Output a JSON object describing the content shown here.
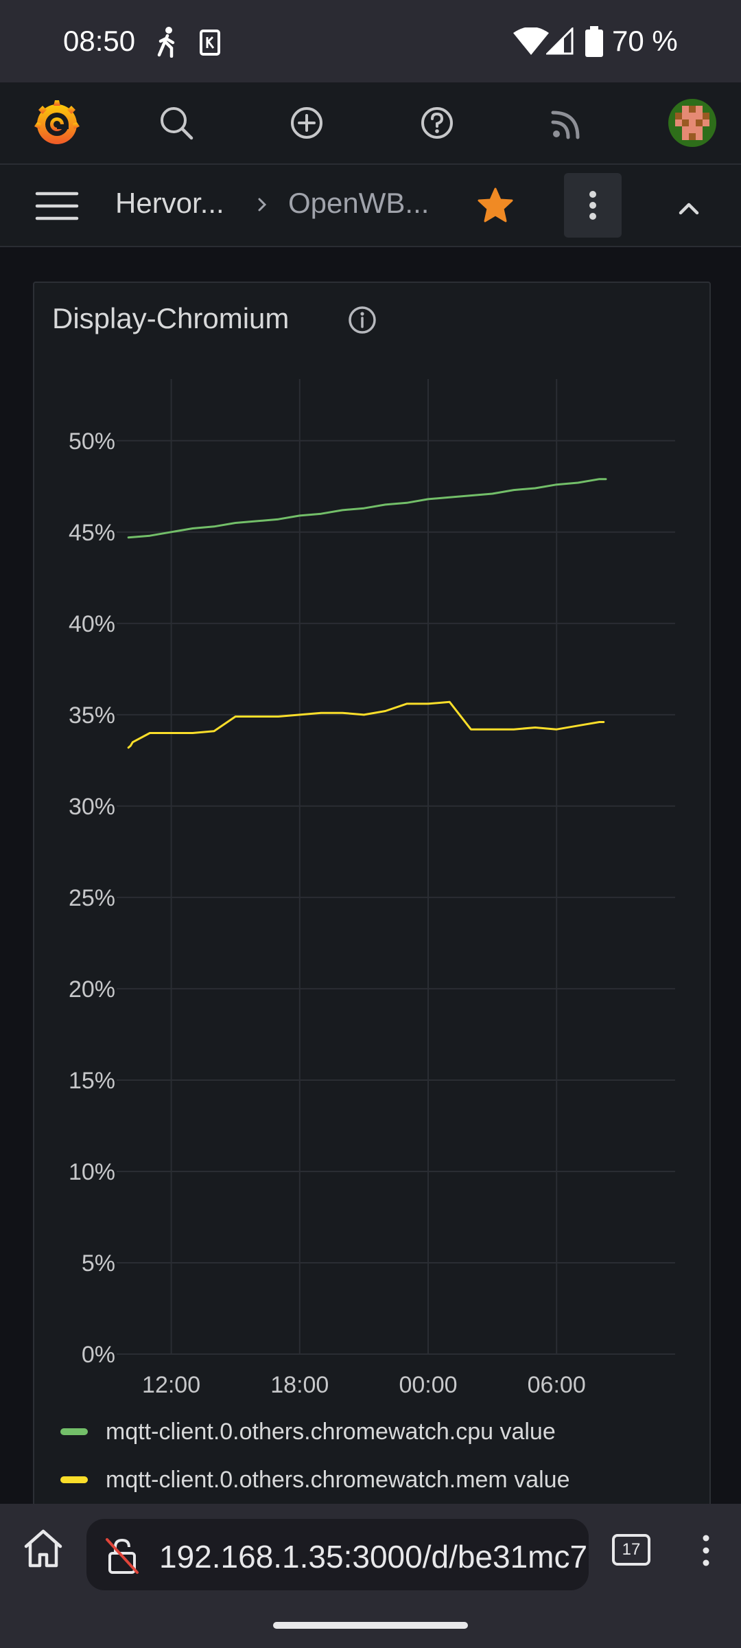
{
  "status_bar": {
    "time": "08:50",
    "battery": "70 %"
  },
  "breadcrumb": {
    "item_1": "Hervor...",
    "item_2": "OpenWB..."
  },
  "panel": {
    "title": "Display-Chromium"
  },
  "chart_data": {
    "type": "line",
    "title": "Display-Chromium",
    "xlabel": "",
    "ylabel": "",
    "x_tick_labels": [
      "12:00",
      "18:00",
      "00:00",
      "06:00"
    ],
    "y_tick_labels": [
      "0%",
      "5%",
      "10%",
      "15%",
      "20%",
      "25%",
      "30%",
      "35%",
      "40%",
      "45%",
      "50%"
    ],
    "ylim": [
      0,
      53
    ],
    "x_hours_range": [
      9,
      34
    ],
    "grid": true,
    "legend_position": "bottom",
    "series": [
      {
        "name": "mqtt-client.0.others.chromewatch.cpu value",
        "color": "#73bf69",
        "x_hours": [
          10,
          11,
          12,
          13,
          14,
          15,
          16,
          17,
          18,
          19,
          20,
          21,
          22,
          23,
          24,
          25,
          26,
          27,
          28,
          29,
          30,
          31,
          32,
          32.3
        ],
        "values": [
          44.7,
          44.8,
          45.0,
          45.2,
          45.3,
          45.5,
          45.6,
          45.7,
          45.9,
          46.0,
          46.2,
          46.3,
          46.5,
          46.6,
          46.8,
          46.9,
          47.0,
          47.1,
          47.3,
          47.4,
          47.6,
          47.7,
          47.9,
          47.9
        ]
      },
      {
        "name": "mqtt-client.0.others.chromewatch.mem value",
        "color": "#fade2a",
        "x_hours": [
          10,
          10.1,
          10.2,
          11,
          12,
          13,
          14,
          15,
          16,
          17,
          18,
          19,
          20,
          21,
          22,
          23,
          24,
          25,
          26,
          27,
          28,
          29,
          30,
          31,
          32,
          32.2
        ],
        "values": [
          33.2,
          33.3,
          33.5,
          34.0,
          34.0,
          34.0,
          34.1,
          34.9,
          34.9,
          34.9,
          35.0,
          35.1,
          35.1,
          35.0,
          35.2,
          35.6,
          35.6,
          35.7,
          34.2,
          34.2,
          34.2,
          34.3,
          34.2,
          34.4,
          34.6,
          34.6
        ]
      }
    ]
  },
  "browser": {
    "url": "192.168.1.35:3000/d/be31mc7",
    "tab_count": "17"
  },
  "icons": {
    "logo": "grafana-logo-icon",
    "search": "search-icon",
    "add": "plus-circle-icon",
    "help": "help-icon",
    "news": "rss-feed-icon",
    "avatar": "user-avatar"
  },
  "colors": {
    "accent": "#f46800",
    "star": "#f08a24",
    "background": "#111217",
    "panel": "#181b1f"
  }
}
